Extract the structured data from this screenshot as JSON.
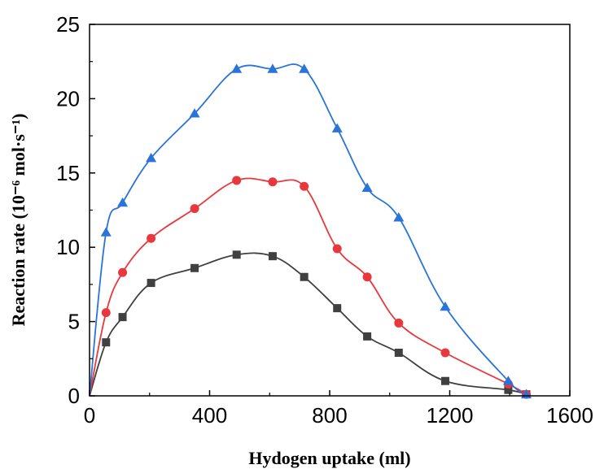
{
  "chart_data": {
    "type": "scatter",
    "title": "",
    "xlabel": "Hydogen uptake (ml)",
    "ylabel": "Reaction rate (10⁻⁶ mol·s⁻¹)",
    "xlim": [
      0,
      1600
    ],
    "ylim": [
      0,
      25
    ],
    "x_ticks": [
      "0",
      "400",
      "800",
      "1200",
      "1600"
    ],
    "y_ticks": [
      "0",
      "5",
      "10",
      "15",
      "20",
      "25"
    ],
    "grid": false,
    "legend": "none",
    "series": [
      {
        "marker": "square",
        "color": "#404040",
        "points": [
          [
            0,
            0
          ],
          [
            55,
            3.6
          ],
          [
            110,
            5.3
          ],
          [
            205,
            7.6
          ],
          [
            350,
            8.6
          ],
          [
            490,
            9.5
          ],
          [
            610,
            9.4
          ],
          [
            715,
            8.0
          ],
          [
            825,
            5.9
          ],
          [
            925,
            4.0
          ],
          [
            1030,
            2.9
          ],
          [
            1185,
            1.0
          ],
          [
            1395,
            0.4
          ],
          [
            1455,
            0.1
          ]
        ]
      },
      {
        "marker": "circle",
        "color": "#e8383d",
        "points": [
          [
            0,
            0
          ],
          [
            55,
            5.6
          ],
          [
            110,
            8.3
          ],
          [
            205,
            10.6
          ],
          [
            350,
            12.6
          ],
          [
            490,
            14.5
          ],
          [
            610,
            14.4
          ],
          [
            715,
            14.1
          ],
          [
            825,
            9.9
          ],
          [
            925,
            8.0
          ],
          [
            1030,
            4.9
          ],
          [
            1185,
            2.9
          ],
          [
            1395,
            0.8
          ],
          [
            1455,
            0.1
          ]
        ]
      },
      {
        "marker": "triangle",
        "color": "#2a73d8",
        "points": [
          [
            0,
            0
          ],
          [
            55,
            11.0
          ],
          [
            110,
            13.0
          ],
          [
            205,
            16.0
          ],
          [
            350,
            19.0
          ],
          [
            490,
            22.0
          ],
          [
            610,
            22.0
          ],
          [
            715,
            22.0
          ],
          [
            825,
            18.0
          ],
          [
            925,
            14.0
          ],
          [
            1030,
            12.0
          ],
          [
            1185,
            6.0
          ],
          [
            1395,
            1.0
          ],
          [
            1455,
            0.1
          ]
        ]
      }
    ]
  }
}
